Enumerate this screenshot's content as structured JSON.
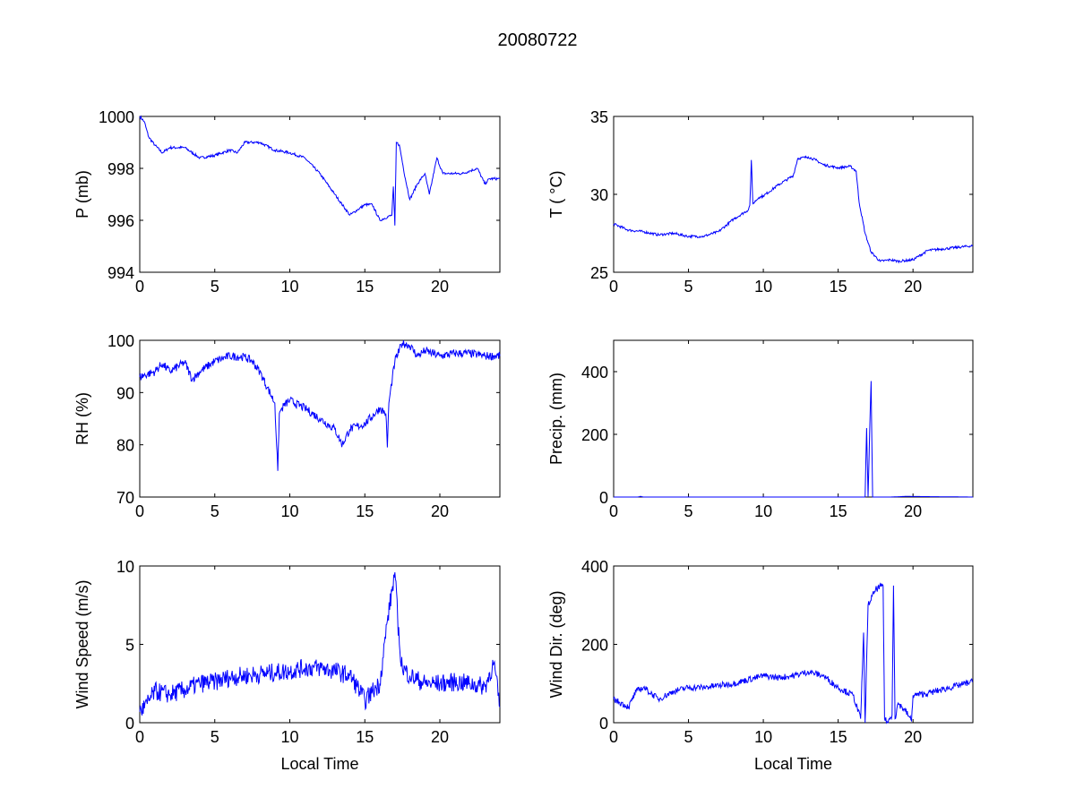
{
  "title": "20080722",
  "chart_data": [
    {
      "type": "line",
      "ylabel": "P (mb)",
      "xlabel": "",
      "xlim": [
        0,
        24
      ],
      "ylim": [
        994,
        1000
      ],
      "xticks": [
        0,
        5,
        10,
        15,
        20
      ],
      "yticks": [
        994,
        996,
        998,
        1000
      ],
      "color": "#0000ff",
      "x": [
        0,
        0.3,
        0.6,
        1,
        1.5,
        2,
        3,
        4,
        5,
        6,
        6.5,
        7,
        8,
        9,
        10,
        11,
        12,
        13,
        14,
        14.5,
        15,
        15.5,
        16,
        16.8,
        16.9,
        17.0,
        17.1,
        17.3,
        17.7,
        18,
        18.5,
        19,
        19.3,
        19.8,
        20.2,
        21,
        21.5,
        22,
        22.5,
        23,
        23.3,
        24
      ],
      "y": [
        1000,
        999.8,
        999.2,
        998.9,
        998.6,
        998.8,
        998.8,
        998.4,
        998.5,
        998.7,
        998.6,
        999.0,
        999.0,
        998.7,
        998.6,
        998.4,
        997.8,
        997.0,
        996.2,
        996.4,
        996.6,
        996.6,
        996.0,
        996.2,
        997.3,
        995.8,
        999.0,
        998.9,
        997.6,
        996.8,
        997.4,
        997.8,
        997.0,
        998.4,
        997.8,
        997.8,
        997.8,
        997.9,
        998.0,
        997.4,
        997.6,
        997.6
      ]
    },
    {
      "type": "line",
      "ylabel": "T ( °C)",
      "xlabel": "",
      "xlim": [
        0,
        24
      ],
      "ylim": [
        25,
        35
      ],
      "xticks": [
        0,
        5,
        10,
        15,
        20
      ],
      "yticks": [
        25,
        30,
        35
      ],
      "color": "#0000ff",
      "x": [
        0,
        1,
        2,
        3,
        4,
        5,
        6,
        7,
        8,
        9,
        9.1,
        9.2,
        9.3,
        9.7,
        10,
        11,
        11.5,
        12,
        12.3,
        13,
        13.5,
        14,
        15,
        15.8,
        16.2,
        16.4,
        16.8,
        17.2,
        17.8,
        18.5,
        19,
        20,
        21,
        22,
        23,
        24
      ],
      "y": [
        28.1,
        27.7,
        27.6,
        27.4,
        27.5,
        27.3,
        27.3,
        27.6,
        28.4,
        29.0,
        29.3,
        32.2,
        29.4,
        29.8,
        29.9,
        30.6,
        30.9,
        31.2,
        32.3,
        32.4,
        32.2,
        31.9,
        31.7,
        31.8,
        31.5,
        29.5,
        27.5,
        26.3,
        25.7,
        25.8,
        25.7,
        25.8,
        26.4,
        26.5,
        26.6,
        26.7
      ]
    },
    {
      "type": "line",
      "ylabel": "RH (%)",
      "xlabel": "",
      "xlim": [
        0,
        24
      ],
      "ylim": [
        70,
        100
      ],
      "xticks": [
        0,
        5,
        10,
        15,
        20
      ],
      "yticks": [
        70,
        80,
        90,
        100
      ],
      "color": "#0000ff",
      "x": [
        0,
        1,
        1.5,
        2,
        3,
        3.5,
        4,
        5,
        6,
        7,
        7.5,
        8,
        8.5,
        9,
        9.2,
        9.3,
        9.6,
        10,
        11,
        12,
        13,
        13.5,
        14,
        15,
        16,
        16.4,
        16.5,
        16.6,
        17,
        17.5,
        18,
        18.5,
        19,
        20,
        21,
        22,
        23,
        24
      ],
      "y": [
        93,
        94,
        95.5,
        94,
        95.8,
        92.5,
        94,
        96,
        97,
        96.8,
        96,
        94,
        91,
        88,
        75,
        86,
        87.5,
        88.5,
        87,
        85,
        83,
        80,
        83,
        84,
        87,
        86,
        79.5,
        88,
        96,
        99.5,
        99,
        97,
        98,
        97,
        97.5,
        97.5,
        97,
        97
      ]
    },
    {
      "type": "line",
      "ylabel": "Precip. (mm)",
      "xlabel": "",
      "xlim": [
        0,
        24
      ],
      "ylim": [
        0,
        500
      ],
      "xticks": [
        0,
        5,
        10,
        15,
        20
      ],
      "yticks": [
        0,
        200,
        400
      ],
      "color": "#0000ff",
      "x": [
        0,
        1.6,
        1.8,
        2.0,
        16.8,
        16.9,
        17.0,
        17.1,
        17.2,
        17.3,
        18.5,
        19.5,
        24
      ],
      "y": [
        0,
        0,
        2,
        0,
        0,
        220,
        0,
        200,
        370,
        0,
        0,
        2,
        0
      ]
    },
    {
      "type": "line",
      "ylabel": "Wind Speed (m/s)",
      "xlabel": "Local Time",
      "xlim": [
        0,
        24
      ],
      "ylim": [
        0,
        10
      ],
      "xticks": [
        0,
        5,
        10,
        15,
        20
      ],
      "yticks": [
        0,
        5,
        10
      ],
      "color": "#0000ff",
      "x": [
        0,
        0.5,
        1,
        2,
        3,
        4,
        5,
        6,
        7,
        8,
        9,
        10,
        11,
        12,
        13,
        14,
        14.5,
        15,
        15.5,
        16,
        16.5,
        17,
        17.3,
        17.5,
        18,
        19,
        20,
        21,
        22,
        23,
        23.6,
        24
      ],
      "y": [
        0.7,
        1.2,
        2,
        1.8,
        2.1,
        2.5,
        2.6,
        2.9,
        3.0,
        3.1,
        3.2,
        3.3,
        3.5,
        3.5,
        3.3,
        3.0,
        2.3,
        1.4,
        2.0,
        2.5,
        6.5,
        9.6,
        5,
        3.5,
        3,
        2.5,
        2.5,
        2.6,
        2.5,
        2.3,
        3.8,
        1.0
      ]
    },
    {
      "type": "line",
      "ylabel": "Wind Dir. (deg)",
      "xlabel": "Local Time",
      "xlim": [
        0,
        24
      ],
      "ylim": [
        0,
        400
      ],
      "xticks": [
        0,
        5,
        10,
        15,
        20
      ],
      "yticks": [
        0,
        200,
        400
      ],
      "color": "#0000ff",
      "x": [
        0,
        1,
        1.5,
        2,
        3,
        4,
        5,
        6,
        7,
        8,
        9,
        10,
        11,
        12,
        13,
        14,
        15,
        16,
        16.5,
        16.7,
        16.8,
        17,
        17.5,
        18,
        18.1,
        18.3,
        18.6,
        18.7,
        18.8,
        19,
        19.5,
        19.9,
        20,
        21,
        22,
        23,
        24
      ],
      "y": [
        60,
        40,
        80,
        90,
        60,
        80,
        90,
        90,
        95,
        100,
        110,
        120,
        115,
        120,
        130,
        120,
        90,
        70,
        10,
        230,
        0,
        300,
        340,
        350,
        10,
        0,
        20,
        350,
        10,
        50,
        30,
        5,
        70,
        75,
        85,
        95,
        105
      ]
    }
  ]
}
